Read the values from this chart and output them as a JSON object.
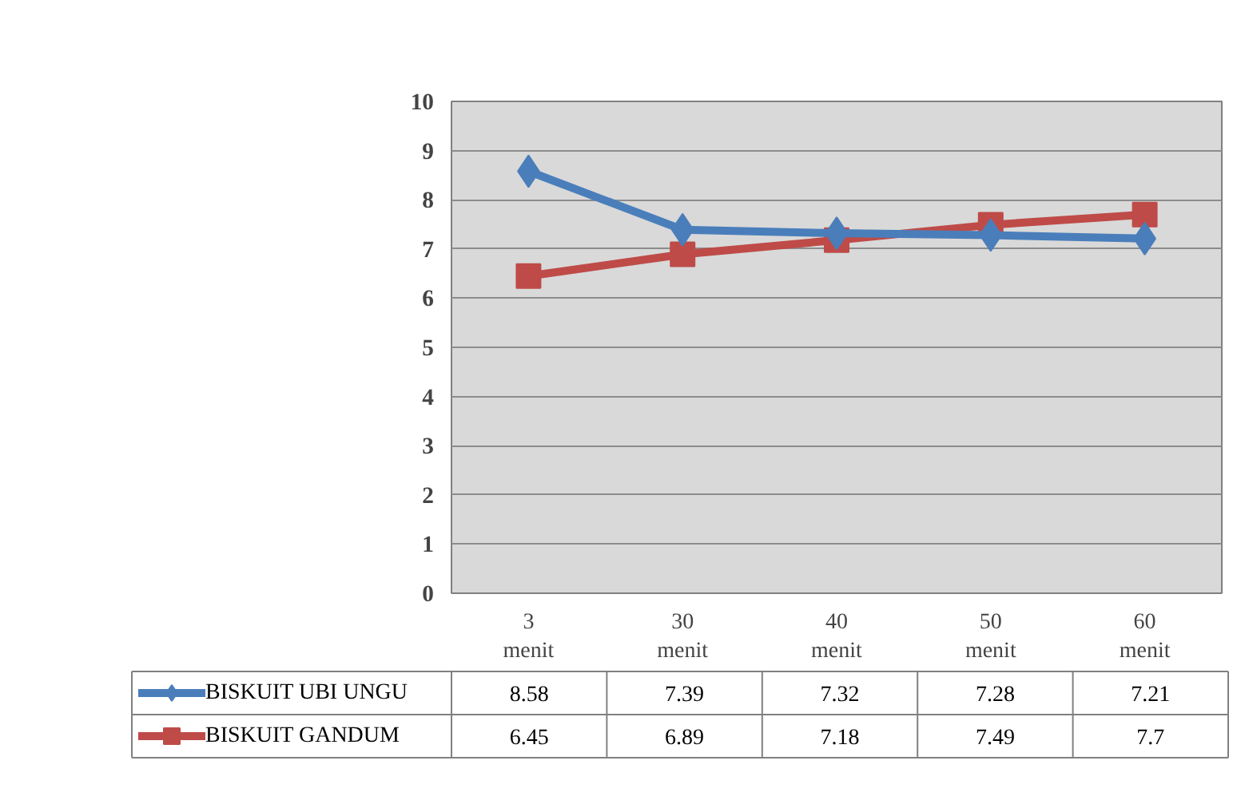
{
  "chart_data": {
    "type": "line",
    "categories": [
      "3 menit",
      "30 menit",
      "40 menit",
      "50 menit",
      "60 menit"
    ],
    "series": [
      {
        "name": "BISKUIT UBI UNGU",
        "color": "#4a7ebb",
        "marker": "diamond",
        "values": [
          8.58,
          7.39,
          7.32,
          7.28,
          7.21
        ]
      },
      {
        "name": "BISKUIT GANDUM",
        "color": "#be4b48",
        "marker": "square",
        "values": [
          6.45,
          6.89,
          7.18,
          7.49,
          7.7
        ]
      }
    ],
    "ylim": [
      0,
      10
    ],
    "yticks": [
      0,
      1,
      2,
      3,
      4,
      5,
      6,
      7,
      8,
      9,
      10
    ],
    "grid": "y",
    "legend": "bottom",
    "data_labels": true
  }
}
